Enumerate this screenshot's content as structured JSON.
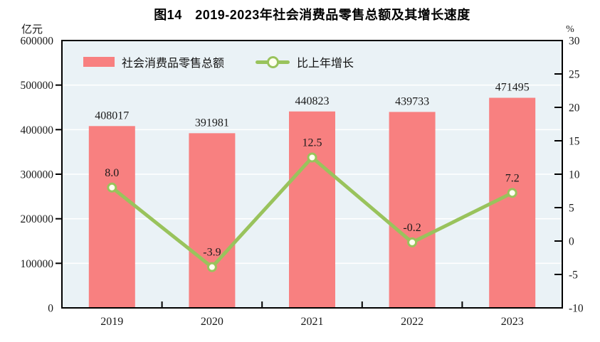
{
  "chart_data": {
    "type": "bar+line",
    "title": "图14　2019-2023年社会消费品零售总额及其增长速度",
    "categories": [
      "2019",
      "2020",
      "2021",
      "2022",
      "2023"
    ],
    "series": [
      {
        "name": "社会消费品零售总额",
        "type": "bar",
        "axis": "left",
        "values": [
          408017,
          391981,
          440823,
          439733,
          471495
        ],
        "labels": [
          "408017",
          "391981",
          "440823",
          "439733",
          "471495"
        ],
        "color": "#F88080"
      },
      {
        "name": "比上年增长",
        "type": "line",
        "axis": "right",
        "values": [
          8.0,
          -3.9,
          12.5,
          -0.2,
          7.2
        ],
        "labels": [
          "8.0",
          "-3.9",
          "12.5",
          "-0.2",
          "7.2"
        ],
        "color": "#99C35C",
        "marker_fill": "#FFFFF0"
      }
    ],
    "left_axis": {
      "unit": "亿元",
      "min": 0,
      "max": 600000,
      "step": 100000,
      "tick_labels": [
        "0",
        "100000",
        "200000",
        "300000",
        "400000",
        "500000",
        "600000"
      ]
    },
    "right_axis": {
      "unit": "%",
      "min": -10,
      "max": 30,
      "step": 5,
      "tick_labels": [
        "-10",
        "-5",
        "0",
        "5",
        "10",
        "15",
        "20",
        "25",
        "30"
      ]
    },
    "legend": {
      "position": "top-inside",
      "entries": [
        "社会消费品零售总额",
        "比上年增长"
      ]
    },
    "grid": true,
    "colors": {
      "plot_background": "#EAF2F6",
      "gridline": "#FFFFFF",
      "axis": "#000000",
      "text": "#1A1A1A"
    }
  }
}
